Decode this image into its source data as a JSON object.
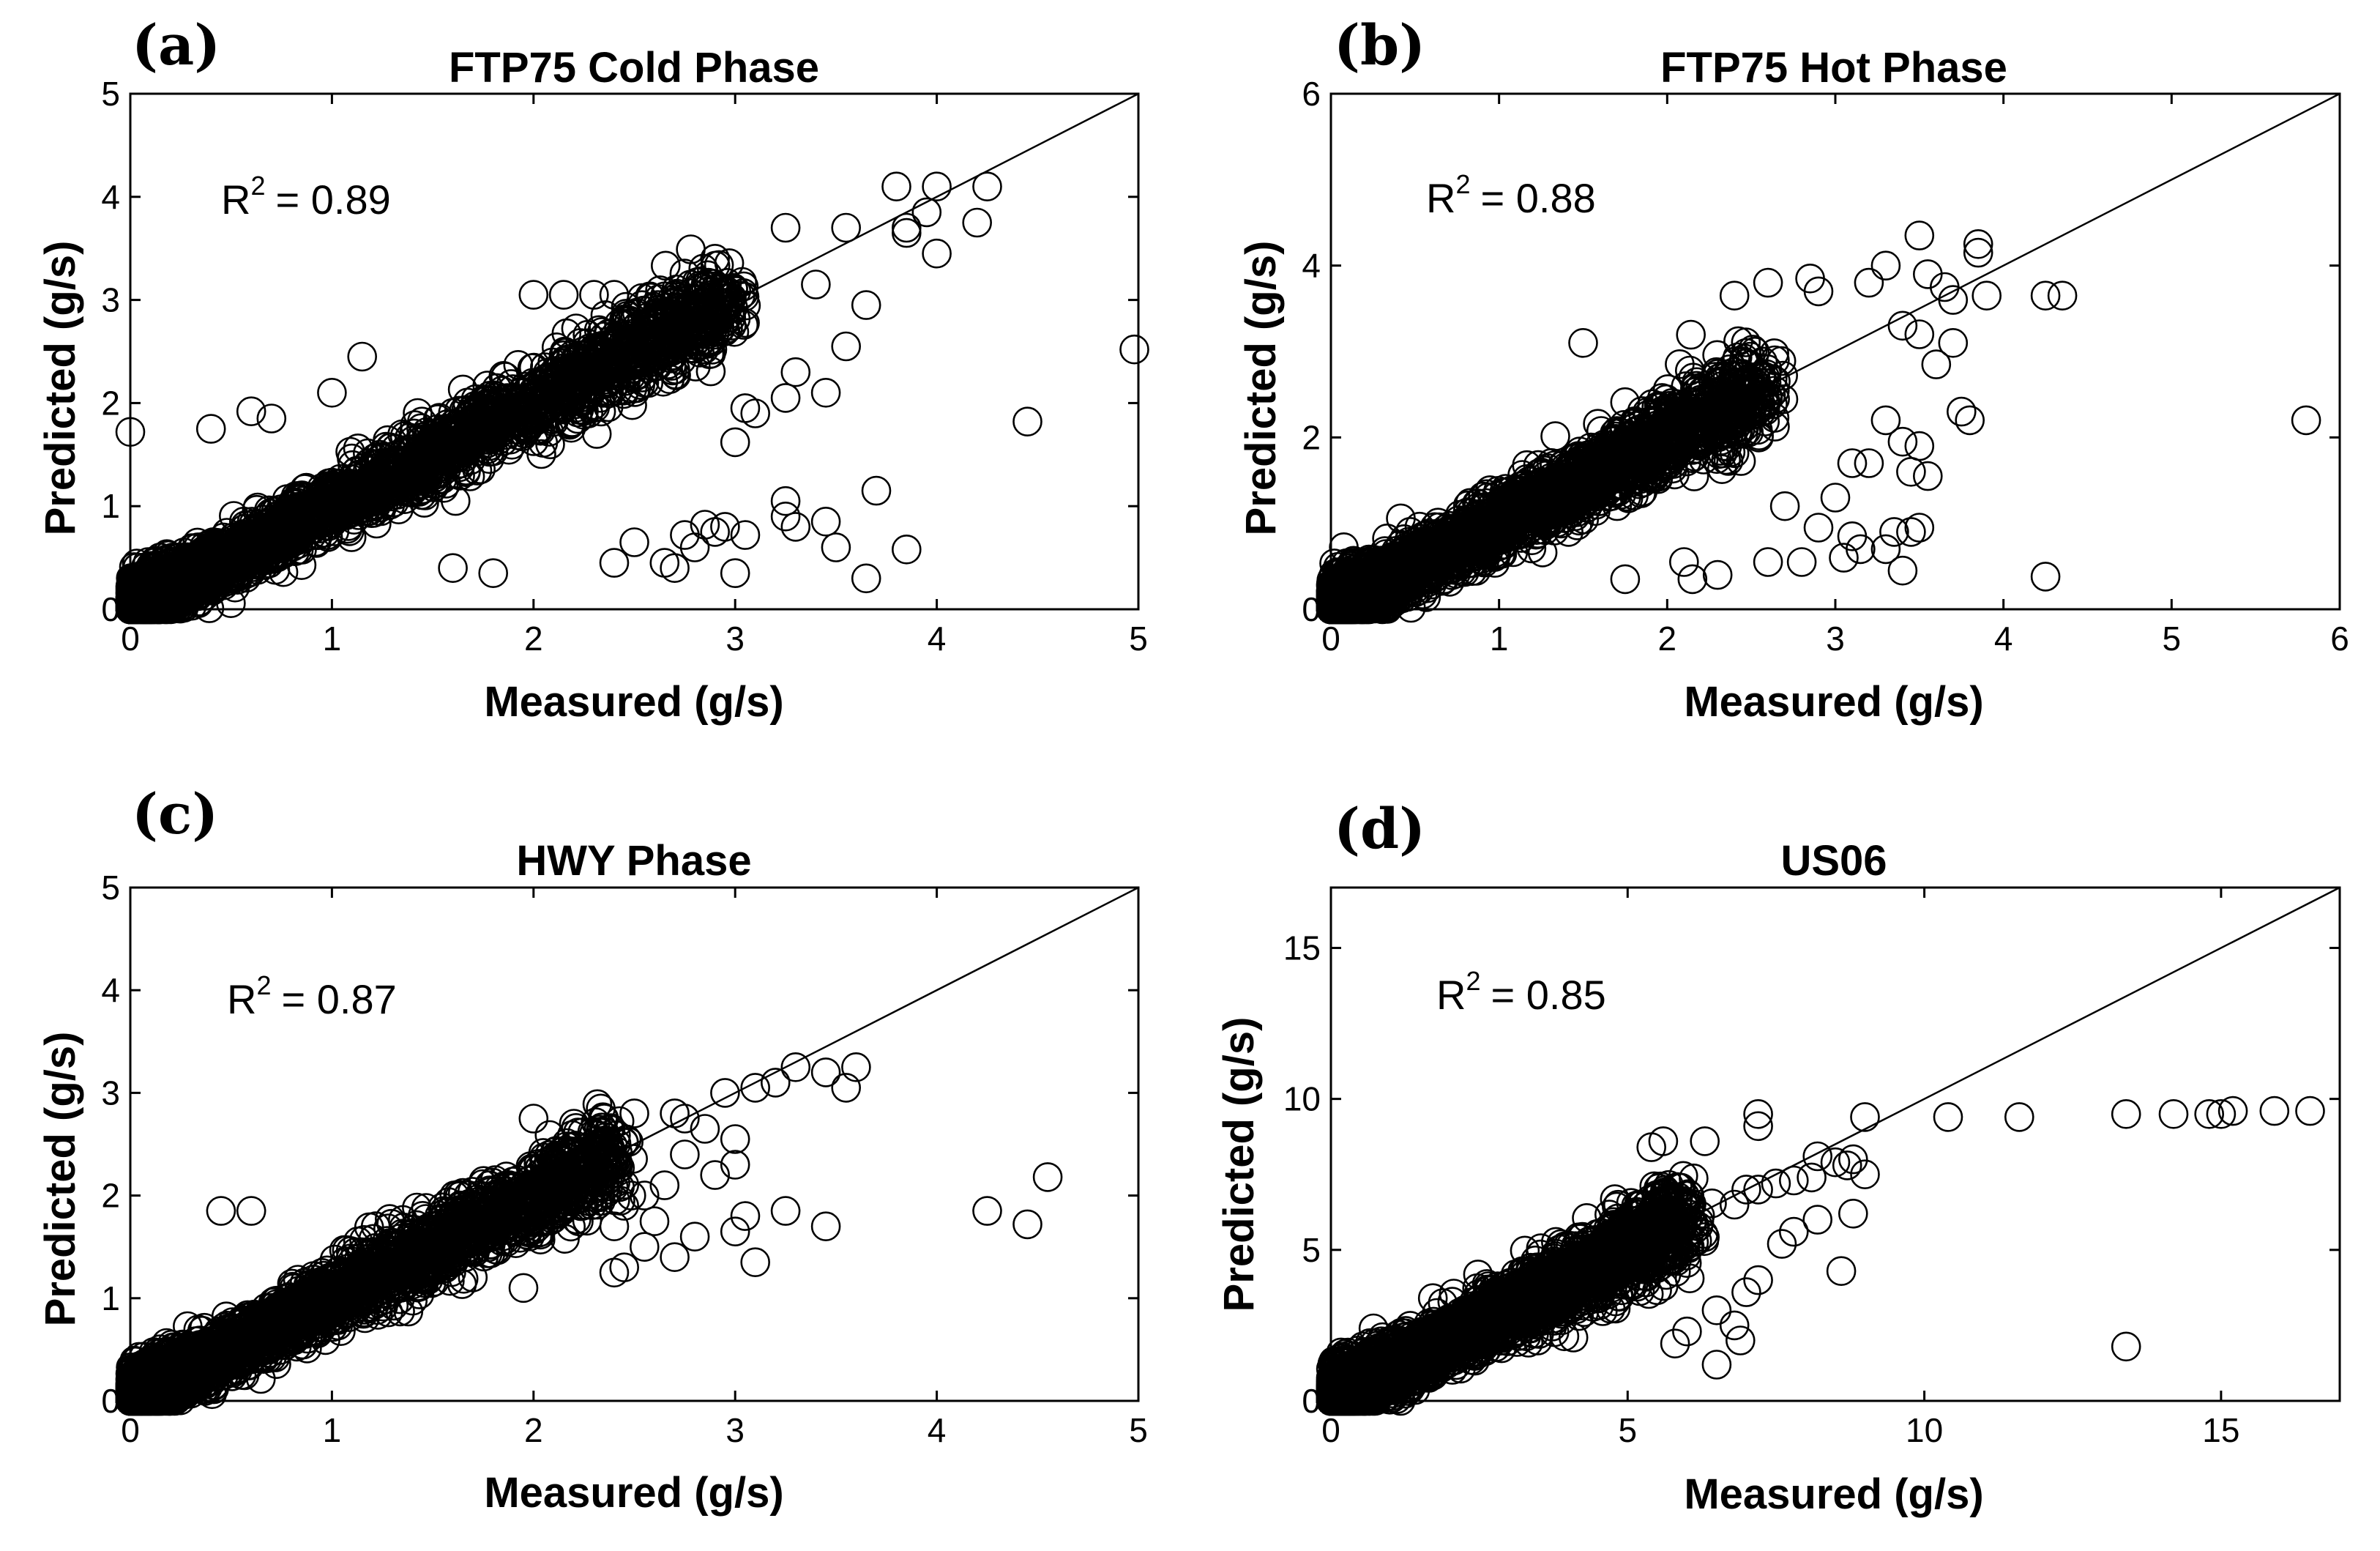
{
  "chart_data": [
    {
      "panel_label": "(a)",
      "type": "scatter",
      "title": "FTP75 Cold Phase",
      "xlabel": "Measured (g/s)",
      "ylabel": "Predicted (g/s)",
      "xlim": [
        0,
        5
      ],
      "ylim": [
        0,
        5
      ],
      "xticks": [
        0,
        1,
        2,
        3,
        4,
        5
      ],
      "yticks": [
        0,
        1,
        2,
        3,
        4,
        5
      ],
      "reference_line": "y = x",
      "r2_prefix": "R",
      "r2_exp": "2",
      "r2_value": "= 0.89",
      "dense_cloud_max_x": 3.0,
      "series": [
        {
          "marker": "open-circle",
          "points": [
            [
              0.0,
              1.72
            ],
            [
              0.4,
              1.75
            ],
            [
              0.6,
              1.92
            ],
            [
              0.7,
              1.85
            ],
            [
              1.0,
              2.1
            ],
            [
              1.15,
              2.45
            ],
            [
              2.0,
              3.05
            ],
            [
              2.15,
              3.05
            ],
            [
              2.3,
              3.05
            ],
            [
              2.4,
              3.05
            ],
            [
              2.9,
              3.4
            ],
            [
              3.25,
              3.7
            ],
            [
              3.4,
              3.15
            ],
            [
              3.55,
              3.7
            ],
            [
              3.8,
              4.1
            ],
            [
              3.85,
              3.7
            ],
            [
              3.85,
              3.65
            ],
            [
              3.95,
              3.85
            ],
            [
              4.0,
              4.1
            ],
            [
              4.0,
              3.45
            ],
            [
              4.2,
              3.75
            ],
            [
              4.25,
              4.1
            ],
            [
              3.65,
              2.95
            ],
            [
              3.55,
              2.55
            ],
            [
              3.45,
              2.1
            ],
            [
              3.3,
              2.3
            ],
            [
              3.25,
              2.05
            ],
            [
              3.05,
              1.95
            ],
            [
              3.0,
              1.62
            ],
            [
              3.1,
              1.9
            ],
            [
              3.25,
              1.05
            ],
            [
              3.25,
              0.9
            ],
            [
              3.3,
              0.8
            ],
            [
              3.05,
              0.72
            ],
            [
              2.95,
              0.8
            ],
            [
              2.9,
              0.75
            ],
            [
              2.85,
              0.82
            ],
            [
              2.75,
              0.72
            ],
            [
              2.8,
              0.6
            ],
            [
              2.65,
              0.45
            ],
            [
              2.7,
              0.4
            ],
            [
              3.0,
              0.35
            ],
            [
              3.45,
              0.85
            ],
            [
              3.5,
              0.6
            ],
            [
              3.65,
              0.3
            ],
            [
              3.7,
              1.15
            ],
            [
              3.85,
              0.58
            ],
            [
              4.45,
              1.82
            ],
            [
              4.98,
              2.52
            ],
            [
              2.4,
              0.45
            ],
            [
              2.5,
              0.65
            ],
            [
              1.8,
              0.35
            ],
            [
              1.6,
              0.4
            ]
          ]
        }
      ]
    },
    {
      "panel_label": "(b)",
      "type": "scatter",
      "title": "FTP75 Hot Phase",
      "xlabel": "Measured (g/s)",
      "ylabel": "Predicted (g/s)",
      "xlim": [
        0,
        6
      ],
      "ylim": [
        0,
        6
      ],
      "xticks": [
        0,
        1,
        2,
        3,
        4,
        5,
        6
      ],
      "yticks": [
        0,
        2,
        4,
        6
      ],
      "reference_line": "y = x",
      "r2_prefix": "R",
      "r2_exp": "2",
      "r2_value": "= 0.88",
      "dense_cloud_max_x": 2.6,
      "series": [
        {
          "marker": "open-circle",
          "points": [
            [
              1.5,
              3.1
            ],
            [
              2.4,
              3.65
            ],
            [
              2.6,
              3.8
            ],
            [
              2.85,
              3.85
            ],
            [
              2.9,
              3.7
            ],
            [
              3.2,
              3.8
            ],
            [
              3.3,
              4.0
            ],
            [
              3.5,
              4.35
            ],
            [
              3.55,
              3.9
            ],
            [
              3.65,
              3.75
            ],
            [
              3.7,
              3.6
            ],
            [
              3.85,
              4.25
            ],
            [
              3.85,
              4.15
            ],
            [
              3.9,
              3.65
            ],
            [
              3.4,
              3.3
            ],
            [
              3.5,
              3.2
            ],
            [
              3.6,
              2.85
            ],
            [
              3.7,
              3.1
            ],
            [
              3.75,
              2.3
            ],
            [
              3.8,
              2.2
            ],
            [
              3.3,
              2.2
            ],
            [
              3.4,
              1.95
            ],
            [
              3.5,
              1.9
            ],
            [
              3.45,
              1.6
            ],
            [
              3.55,
              1.55
            ],
            [
              3.2,
              1.7
            ],
            [
              3.1,
              1.7
            ],
            [
              3.0,
              1.3
            ],
            [
              3.1,
              0.85
            ],
            [
              3.15,
              0.7
            ],
            [
              3.3,
              0.7
            ],
            [
              3.35,
              0.9
            ],
            [
              3.45,
              0.9
            ],
            [
              3.5,
              0.95
            ],
            [
              3.4,
              0.45
            ],
            [
              3.05,
              0.6
            ],
            [
              2.8,
              0.55
            ],
            [
              2.6,
              0.55
            ],
            [
              2.3,
              0.4
            ],
            [
              2.15,
              0.35
            ],
            [
              2.1,
              0.55
            ],
            [
              1.75,
              0.35
            ],
            [
              4.25,
              3.65
            ],
            [
              4.35,
              3.65
            ],
            [
              4.25,
              0.38
            ],
            [
              5.8,
              2.2
            ],
            [
              2.9,
              0.95
            ],
            [
              2.7,
              1.2
            ]
          ]
        }
      ]
    },
    {
      "panel_label": "(c)",
      "type": "scatter",
      "title": "HWY Phase",
      "xlabel": "Measured (g/s)",
      "ylabel": "Predicted (g/s)",
      "xlim": [
        0,
        5
      ],
      "ylim": [
        0,
        5
      ],
      "xticks": [
        0,
        1,
        2,
        3,
        4,
        5
      ],
      "yticks": [
        0,
        1,
        2,
        3,
        4,
        5
      ],
      "reference_line": "y = x",
      "r2_prefix": "R",
      "r2_exp": "2",
      "r2_value": "= 0.87",
      "dense_cloud_max_x": 2.4,
      "series": [
        {
          "marker": "open-circle",
          "points": [
            [
              0.45,
              1.85
            ],
            [
              0.6,
              1.85
            ],
            [
              2.0,
              2.75
            ],
            [
              2.2,
              2.7
            ],
            [
              2.35,
              2.75
            ],
            [
              2.5,
              2.8
            ],
            [
              2.7,
              2.8
            ],
            [
              2.75,
              2.75
            ],
            [
              2.85,
              2.65
            ],
            [
              2.95,
              3.0
            ],
            [
              3.1,
              3.05
            ],
            [
              3.2,
              3.1
            ],
            [
              3.3,
              3.25
            ],
            [
              3.45,
              3.2
            ],
            [
              3.55,
              3.05
            ],
            [
              3.6,
              3.25
            ],
            [
              3.0,
              2.55
            ],
            [
              3.0,
              2.3
            ],
            [
              2.9,
              2.2
            ],
            [
              2.75,
              2.4
            ],
            [
              2.65,
              2.1
            ],
            [
              2.55,
              2.0
            ],
            [
              2.6,
              1.75
            ],
            [
              2.4,
              1.7
            ],
            [
              2.45,
              1.9
            ],
            [
              3.05,
              1.8
            ],
            [
              3.25,
              1.85
            ],
            [
              3.45,
              1.7
            ],
            [
              3.0,
              1.65
            ],
            [
              3.1,
              1.35
            ],
            [
              2.45,
              1.3
            ],
            [
              2.4,
              1.25
            ],
            [
              2.55,
              1.5
            ],
            [
              1.95,
              1.1
            ],
            [
              4.25,
              1.85
            ],
            [
              4.45,
              1.72
            ],
            [
              4.55,
              2.18
            ],
            [
              2.7,
              1.4
            ],
            [
              2.8,
              1.6
            ]
          ]
        }
      ]
    },
    {
      "panel_label": "(d)",
      "type": "scatter",
      "title": "US06",
      "xlabel": "Measured (g/s)",
      "ylabel": "Predicted (g/s)",
      "xlim": [
        0,
        17
      ],
      "ylim": [
        0,
        17
      ],
      "xticks": [
        0,
        5,
        10,
        15
      ],
      "yticks": [
        0,
        5,
        10,
        15
      ],
      "reference_line": "y = x",
      "r2_prefix": "R",
      "r2_exp": "2",
      "r2_value": "= 0.85",
      "dense_cloud_max_x": 6.0,
      "series": [
        {
          "marker": "open-circle",
          "points": [
            [
              5.4,
              8.4
            ],
            [
              5.6,
              8.6
            ],
            [
              6.3,
              8.6
            ],
            [
              7.2,
              9.5
            ],
            [
              7.2,
              9.1
            ],
            [
              9.0,
              9.4
            ],
            [
              10.4,
              9.4
            ],
            [
              11.6,
              9.4
            ],
            [
              13.4,
              9.5
            ],
            [
              14.2,
              9.5
            ],
            [
              14.8,
              9.5
            ],
            [
              15.0,
              9.5
            ],
            [
              15.2,
              9.6
            ],
            [
              15.9,
              9.6
            ],
            [
              16.5,
              9.6
            ],
            [
              8.2,
              8.1
            ],
            [
              8.5,
              7.9
            ],
            [
              8.7,
              7.8
            ],
            [
              8.8,
              8.0
            ],
            [
              9.0,
              7.5
            ],
            [
              8.1,
              7.4
            ],
            [
              7.8,
              7.3
            ],
            [
              7.5,
              7.2
            ],
            [
              7.2,
              7.0
            ],
            [
              7.0,
              7.0
            ],
            [
              6.8,
              6.5
            ],
            [
              8.2,
              6.0
            ],
            [
              7.8,
              5.6
            ],
            [
              7.6,
              5.2
            ],
            [
              8.8,
              6.2
            ],
            [
              7.2,
              4.0
            ],
            [
              7.0,
              3.6
            ],
            [
              6.5,
              3.0
            ],
            [
              6.8,
              2.5
            ],
            [
              6.9,
              2.0
            ],
            [
              6.5,
              1.2
            ],
            [
              8.6,
              4.3
            ],
            [
              13.4,
              1.8
            ],
            [
              6.0,
              2.3
            ],
            [
              5.8,
              1.9
            ]
          ]
        }
      ]
    }
  ]
}
